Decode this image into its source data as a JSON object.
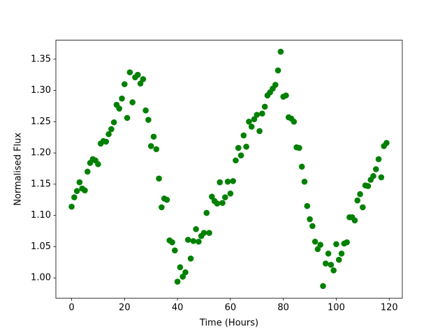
{
  "chart_data": {
    "type": "scatter",
    "x_label": "Time (Hours)",
    "y_label": "Normalised Flux",
    "x": [
      0,
      1,
      2,
      3,
      4,
      5,
      6,
      7,
      8,
      9,
      10,
      11,
      12,
      13,
      14,
      15,
      16,
      17,
      18,
      19,
      20,
      21,
      22,
      23,
      24,
      25,
      26,
      27,
      28,
      29,
      30,
      31,
      32,
      33,
      34,
      35,
      36,
      37,
      38,
      39,
      40,
      41,
      42,
      43,
      44,
      45,
      46,
      47,
      48,
      49,
      50,
      51,
      52,
      53,
      54,
      55,
      56,
      57,
      58,
      59,
      60,
      61,
      62,
      63,
      64,
      65,
      66,
      67,
      68,
      69,
      70,
      71,
      72,
      73,
      74,
      75,
      76,
      77,
      78,
      79,
      80,
      81,
      82,
      83,
      84,
      85,
      86,
      87,
      88,
      89,
      90,
      91,
      92,
      93,
      94,
      95,
      96,
      97,
      98,
      99,
      100,
      101,
      102,
      103,
      104,
      105,
      106,
      107,
      108,
      109,
      110,
      111,
      112,
      113,
      114,
      115,
      116,
      117,
      118,
      119
    ],
    "values": [
      1.114,
      1.129,
      1.139,
      1.153,
      1.143,
      1.14,
      1.17,
      1.184,
      1.19,
      1.188,
      1.182,
      1.215,
      1.219,
      1.218,
      1.23,
      1.238,
      1.249,
      1.277,
      1.271,
      1.287,
      1.31,
      1.256,
      1.329,
      1.281,
      1.321,
      1.325,
      1.311,
      1.318,
      1.268,
      1.253,
      1.211,
      1.226,
      1.206,
      1.159,
      1.113,
      1.127,
      1.125,
      1.06,
      1.057,
      1.044,
      0.994,
      1.017,
      1.002,
      1.009,
      1.061,
      1.031,
      1.059,
      1.078,
      1.058,
      1.067,
      1.072,
      1.104,
      1.072,
      1.13,
      1.123,
      1.119,
      1.153,
      1.12,
      1.129,
      1.154,
      1.135,
      1.155,
      1.188,
      1.208,
      1.196,
      1.228,
      1.21,
      1.25,
      1.242,
      1.254,
      1.261,
      1.235,
      1.263,
      1.274,
      1.292,
      1.297,
      1.303,
      1.309,
      1.332,
      1.362,
      1.29,
      1.292,
      1.257,
      1.255,
      1.25,
      1.209,
      1.208,
      1.178,
      1.154,
      1.115,
      1.094,
      1.083,
      1.058,
      1.046,
      1.053,
      0.987,
      1.023,
      1.039,
      1.021,
      1.012,
      1.054,
      1.029,
      1.039,
      1.055,
      1.057,
      1.097,
      1.097,
      1.092,
      1.124,
      1.134,
      1.113,
      1.148,
      1.147,
      1.157,
      1.163,
      1.174,
      1.19,
      1.161,
      1.211,
      1.216
    ],
    "color": "#008000",
    "xlim": [
      -5.95,
      124.95
    ],
    "xticks": [
      0,
      20,
      40,
      60,
      80,
      100,
      120
    ],
    "ylim": [
      0.9676,
      1.3804
    ],
    "yticks": [
      {
        "value": 1.0,
        "label": "1.00"
      },
      1.05,
      {
        "value": 1.1,
        "label": "1.10"
      },
      1.15,
      {
        "value": 1.2,
        "label": "1.20"
      },
      1.25,
      {
        "value": 1.3,
        "label": "1.30"
      },
      1.35
    ],
    "grid": false
  }
}
